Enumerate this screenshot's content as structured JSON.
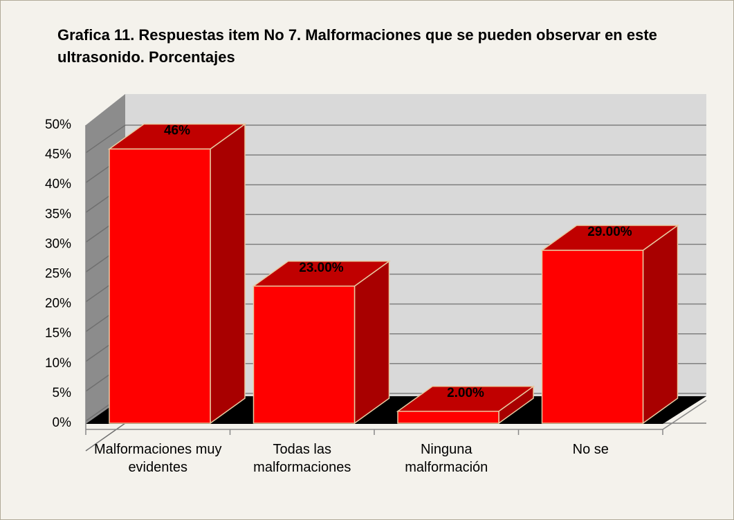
{
  "chart_data": {
    "type": "bar3d",
    "title": "Grafica 11. Respuestas item No 7. Malformaciones que se pueden observar en este ultrasonido.  Porcentajes",
    "categories": [
      "Malformaciones muy evidentes",
      "Todas las malformaciones",
      "Ninguna malformación",
      "No se"
    ],
    "values": [
      46,
      23,
      2,
      29
    ],
    "value_labels": [
      "46%",
      "23.00%",
      "2.00%",
      "29.00%"
    ],
    "color": "#ff0000",
    "ylim": [
      0,
      50
    ],
    "yticks": [
      {
        "value": 0,
        "label": "0%"
      },
      {
        "value": 5,
        "label": "5%"
      },
      {
        "value": 10,
        "label": "10%"
      },
      {
        "value": 15,
        "label": "15%"
      },
      {
        "value": 20,
        "label": "20%"
      },
      {
        "value": 25,
        "label": "25%"
      },
      {
        "value": 30,
        "label": "30%"
      },
      {
        "value": 35,
        "label": "35%"
      },
      {
        "value": 40,
        "label": "40%"
      },
      {
        "value": 45,
        "label": "45%"
      },
      {
        "value": 50,
        "label": "50%"
      }
    ],
    "grid": true
  }
}
